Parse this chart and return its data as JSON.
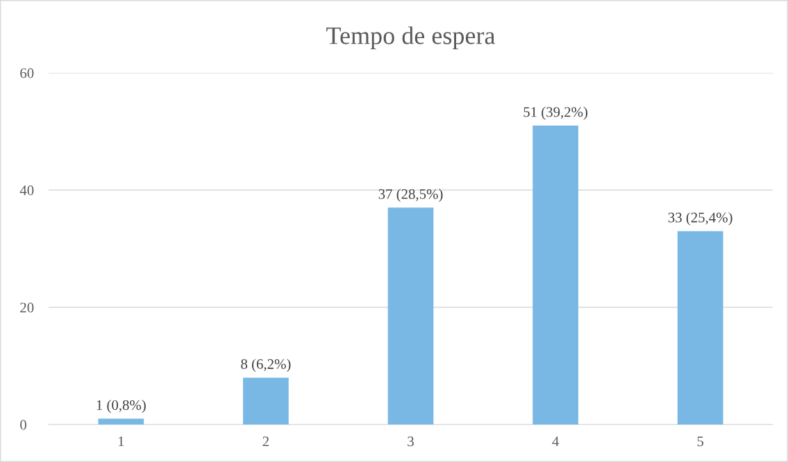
{
  "chart_data": {
    "type": "bar",
    "title": "Tempo de espera",
    "categories": [
      "1",
      "2",
      "3",
      "4",
      "5"
    ],
    "values": [
      1,
      8,
      37,
      51,
      33
    ],
    "value_labels": [
      "1 (0,8%)",
      "8 (6,2%)",
      "37 (28,5%)",
      "51 (39,2%)",
      "33 (25,4%)"
    ],
    "color": "#79b8e4",
    "ylim": [
      0,
      60
    ],
    "yticks": [
      0,
      20,
      40,
      60
    ],
    "grid": "y"
  }
}
